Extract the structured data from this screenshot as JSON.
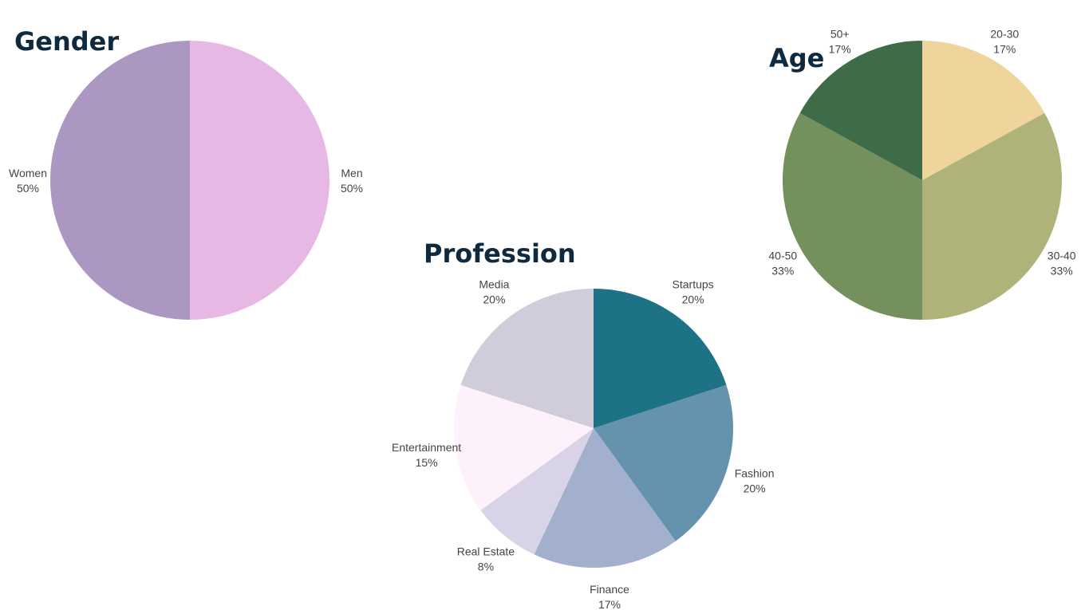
{
  "chart_data": [
    {
      "type": "pie",
      "title": "Gender",
      "slices": [
        {
          "label": "Men",
          "value": 50,
          "display": "50%",
          "color": "#e6b8e3"
        },
        {
          "label": "Women",
          "value": 50,
          "display": "50%",
          "color": "#ab97c2"
        }
      ]
    },
    {
      "type": "pie",
      "title": "Profession",
      "slices": [
        {
          "label": "Startups",
          "value": 20,
          "display": "20%",
          "color": "#1d7385"
        },
        {
          "label": "Fashion",
          "value": 20,
          "display": "20%",
          "color": "#6592ad"
        },
        {
          "label": "Finance",
          "value": 17,
          "display": "17%",
          "color": "#a3b0cd"
        },
        {
          "label": "Real Estate",
          "value": 8,
          "display": "8%",
          "color": "#d8d3e6"
        },
        {
          "label": "Entertainment",
          "value": 15,
          "display": "15%",
          "color": "#fdf2fc"
        },
        {
          "label": "Media",
          "value": 20,
          "display": "20%",
          "color": "#d0ccda"
        }
      ]
    },
    {
      "type": "pie",
      "title": "Age",
      "slices": [
        {
          "label": "20-30",
          "value": 17,
          "display": "17%",
          "color": "#efd59b"
        },
        {
          "label": "30-40",
          "value": 33,
          "display": "33%",
          "color": "#afb279"
        },
        {
          "label": "40-50",
          "value": 33,
          "display": "33%",
          "color": "#74905c"
        },
        {
          "label": "50+",
          "value": 17,
          "display": "17%",
          "color": "#3e6c49"
        }
      ]
    }
  ]
}
